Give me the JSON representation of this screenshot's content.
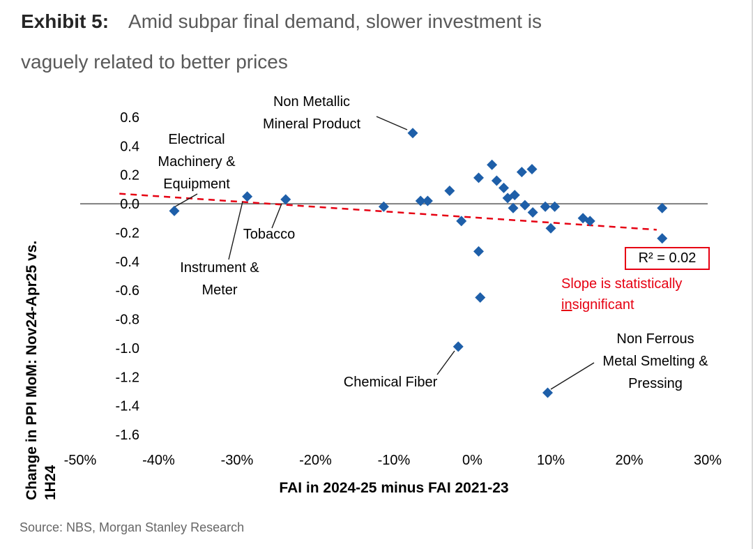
{
  "header": {
    "exhibit": "Exhibit 5:",
    "title_line1": "Amid subpar final demand, slower investment is",
    "title_line2": "vaguely related to better prices"
  },
  "footer": {
    "source": "Source: NBS, Morgan Stanley Research"
  },
  "stats": {
    "r2_label": "R² = 0.02",
    "note_line1": "Slope is statistically",
    "note_underlined": "in",
    "note_rest": "significant"
  },
  "chart_data": {
    "type": "scatter",
    "title": "Exhibit 5: Amid subpar final demand, slower investment is vaguely related to better prices",
    "xlabel": "FAI in 2024-25 minus FAI 2021-23",
    "ylabel": "Change in PPI MoM: Nov24-Apr25 vs. 1H24",
    "ylabel_line1": "Change in PPI MoM: Nov24-Apr25 vs.",
    "ylabel_line2": "1H24",
    "xlim": [
      -50,
      30
    ],
    "ylim": [
      -1.6,
      0.6
    ],
    "x_ticks": [
      -50,
      -40,
      -30,
      -20,
      -10,
      0,
      10,
      20,
      30
    ],
    "x_tick_labels": [
      "-50%",
      "-40%",
      "-30%",
      "-20%",
      "-10%",
      "0%",
      "10%",
      "20%",
      "30%"
    ],
    "y_ticks": [
      0.6,
      0.4,
      0.2,
      0.0,
      -0.2,
      -0.4,
      -0.6,
      -0.8,
      -1.0,
      -1.2,
      -1.4,
      -1.6
    ],
    "marker_color": "#1e5fa9",
    "trend_color": "#e60012",
    "zero_line_color": "#7f7f7f",
    "r_squared": 0.02,
    "trendline": {
      "x1": -45,
      "y1": 0.07,
      "x2": 23.5,
      "y2": -0.18
    },
    "points": [
      {
        "x": -38.0,
        "y": -0.05,
        "label": "Electrical Machinery & Equipment"
      },
      {
        "x": -28.7,
        "y": 0.05,
        "label": "Instrument & Meter"
      },
      {
        "x": -23.8,
        "y": 0.03,
        "label": "Tobacco"
      },
      {
        "x": -11.3,
        "y": -0.02
      },
      {
        "x": -7.6,
        "y": 0.49,
        "label": "Non Metallic Mineral Product"
      },
      {
        "x": -6.6,
        "y": 0.02
      },
      {
        "x": -5.7,
        "y": 0.02
      },
      {
        "x": -2.9,
        "y": 0.09
      },
      {
        "x": -1.4,
        "y": -0.12
      },
      {
        "x": 0.8,
        "y": 0.18
      },
      {
        "x": 2.5,
        "y": 0.27
      },
      {
        "x": 3.1,
        "y": 0.16
      },
      {
        "x": 4.0,
        "y": 0.11
      },
      {
        "x": 4.5,
        "y": 0.04
      },
      {
        "x": 5.2,
        "y": -0.03
      },
      {
        "x": 5.4,
        "y": 0.06
      },
      {
        "x": 6.3,
        "y": 0.22
      },
      {
        "x": 6.7,
        "y": -0.01
      },
      {
        "x": 7.6,
        "y": 0.24
      },
      {
        "x": 7.7,
        "y": -0.06
      },
      {
        "x": 9.3,
        "y": -0.02
      },
      {
        "x": 10.0,
        "y": -0.17
      },
      {
        "x": 10.5,
        "y": -0.02
      },
      {
        "x": 14.1,
        "y": -0.1
      },
      {
        "x": 15.0,
        "y": -0.12
      },
      {
        "x": 24.2,
        "y": -0.03
      },
      {
        "x": 24.2,
        "y": -0.24
      },
      {
        "x": 0.8,
        "y": -0.33
      },
      {
        "x": 1.0,
        "y": -0.65
      },
      {
        "x": -1.8,
        "y": -0.99,
        "label": "Chemical Fiber"
      },
      {
        "x": 9.6,
        "y": -1.31,
        "label": "Non Ferrous Metal Smelting & Pressing"
      }
    ],
    "annotations": [
      {
        "id": "non-metallic",
        "text": "Non Metallic\nMineral Product",
        "target": [
          -7.6,
          0.49
        ]
      },
      {
        "id": "electrical",
        "text": "Electrical\nMachinery &\nEquipment",
        "target": [
          -38.0,
          -0.05
        ]
      },
      {
        "id": "tobacco",
        "text": "Tobacco",
        "target": [
          -23.8,
          0.03
        ]
      },
      {
        "id": "instrument",
        "text": "Instrument &\nMeter",
        "target": [
          -28.7,
          0.05
        ]
      },
      {
        "id": "chemical",
        "text": "Chemical Fiber",
        "target": [
          -1.8,
          -0.99
        ]
      },
      {
        "id": "non-ferrous",
        "text": "Non Ferrous\nMetal Smelting &\nPressing",
        "target": [
          9.6,
          -1.31
        ]
      }
    ],
    "legend": "none",
    "grid": false
  }
}
